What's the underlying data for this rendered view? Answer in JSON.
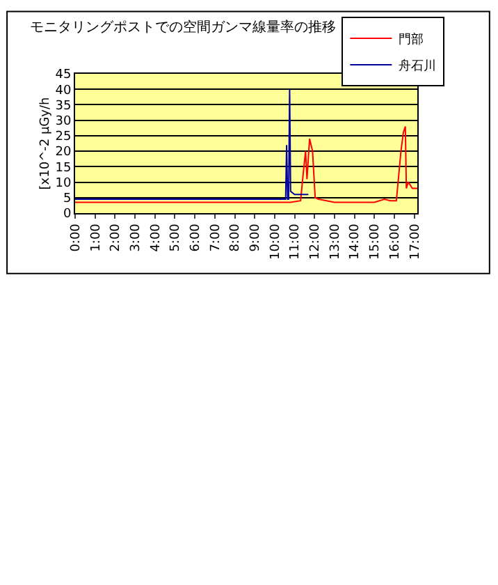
{
  "chart_data": {
    "type": "line",
    "title": "モニタリングポストでの空間ガンマ線量率の推移",
    "ylabel": "[x10^-2 μGy/h",
    "xlim": [
      0,
      17.15
    ],
    "xticks": [
      {
        "value": 0,
        "label": "0:00"
      },
      {
        "value": 1,
        "label": "1:00"
      },
      {
        "value": 2,
        "label": "2:00"
      },
      {
        "value": 3,
        "label": "3:00"
      },
      {
        "value": 4,
        "label": "4:00"
      },
      {
        "value": 5,
        "label": "5:00"
      },
      {
        "value": 6,
        "label": "6:00"
      },
      {
        "value": 7,
        "label": "7:00"
      },
      {
        "value": 8,
        "label": "8:00"
      },
      {
        "value": 9,
        "label": "9:00"
      },
      {
        "value": 10,
        "label": "10:00"
      },
      {
        "value": 11,
        "label": "11:00"
      },
      {
        "value": 12,
        "label": "12:00"
      },
      {
        "value": 13,
        "label": "13:00"
      },
      {
        "value": 14,
        "label": "14:00"
      },
      {
        "value": 15,
        "label": "15:00"
      },
      {
        "value": 16,
        "label": "16:00"
      },
      {
        "value": 17,
        "label": "17:00"
      }
    ],
    "ylim": [
      0,
      45
    ],
    "yticks": [
      0,
      5,
      10,
      15,
      20,
      25,
      30,
      35,
      40,
      45
    ],
    "grid": "y",
    "legend": "top right",
    "marker": "none",
    "line_style": "solid",
    "series": [
      {
        "name": "門部",
        "color": "#ff0000",
        "x": [
          0,
          1,
          2,
          3,
          4,
          5,
          6,
          7,
          8,
          9,
          10,
          10.8,
          11.3,
          11.45,
          11.55,
          11.62,
          11.75,
          11.9,
          12.03,
          12.2,
          13,
          14,
          15,
          15.5,
          15.8,
          16.1,
          16.33,
          16.45,
          16.55,
          16.6,
          16.7,
          16.9,
          17.15
        ],
        "values": [
          3.5,
          3.5,
          3.5,
          3.5,
          3.5,
          3.5,
          3.5,
          3.5,
          3.5,
          3.5,
          3.5,
          3.5,
          4,
          14,
          20,
          11,
          24,
          20,
          5,
          4.5,
          3.5,
          3.5,
          3.5,
          4.5,
          4,
          4,
          20,
          26,
          28,
          8,
          10,
          8,
          8
        ]
      },
      {
        "name": "舟石川",
        "color": "#0000a0",
        "x": [
          0,
          2,
          4,
          6,
          8,
          10,
          10.55,
          10.6,
          10.65,
          10.7,
          10.75,
          10.8,
          11.0,
          11.69
        ],
        "values": [
          4.5,
          4.5,
          4.5,
          4.5,
          4.5,
          4.5,
          4.5,
          22,
          4.5,
          4.5,
          40,
          7,
          6,
          6
        ]
      }
    ]
  }
}
